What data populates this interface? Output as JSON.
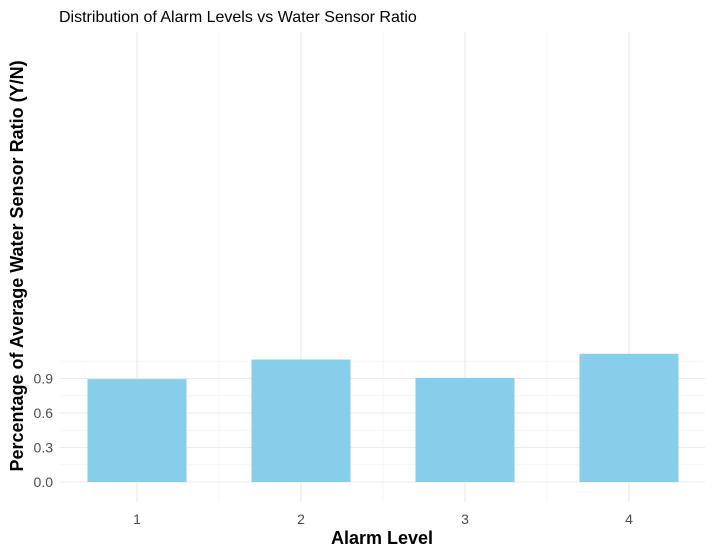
{
  "chart_data": {
    "type": "bar",
    "title": "Distribution of Alarm Levels vs Water Sensor Ratio",
    "xlabel": "Alarm Level",
    "ylabel": "Percentage of Average Water Sensor Ratio (Y/N)",
    "categories": [
      "1",
      "2",
      "3",
      "4"
    ],
    "values": [
      0.895,
      1.065,
      0.905,
      1.115
    ],
    "ylim": [
      0,
      1.165
    ],
    "yticks": [
      0.0,
      0.3,
      0.6,
      0.9
    ],
    "ytick_labels": [
      "0.0",
      "0.3",
      "0.6",
      "0.9"
    ],
    "grid": true,
    "legend": "none",
    "bar_color": "#87CEEB",
    "grid_color": "#ebebeb"
  }
}
